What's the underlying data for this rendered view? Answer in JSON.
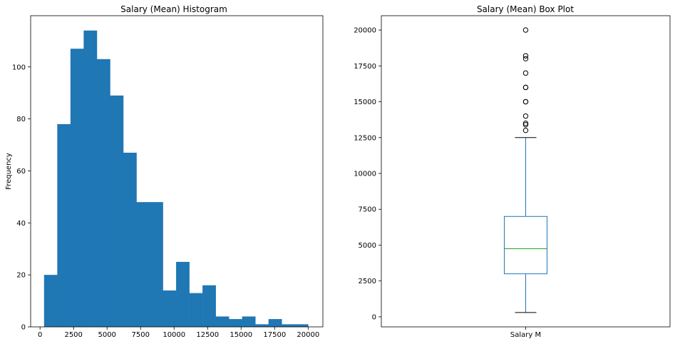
{
  "chart_data": [
    {
      "type": "bar",
      "subtype": "histogram",
      "title": "Salary (Mean) Histogram",
      "xlabel": "",
      "ylabel": "Frequency",
      "xlim": [
        -700,
        21100
      ],
      "ylim": [
        0,
        119.7
      ],
      "color": "#1f77b4",
      "xticks": [
        0,
        2500,
        5000,
        7500,
        10000,
        12500,
        15000,
        17500,
        20000
      ],
      "yticks": [
        0,
        20,
        40,
        60,
        80,
        100
      ],
      "bin_edges": [
        300,
        1285,
        2270,
        3255,
        4240,
        5225,
        6210,
        7195,
        8180,
        9165,
        10150,
        11135,
        12120,
        13105,
        14090,
        15075,
        16060,
        17045,
        18030,
        19015,
        20000
      ],
      "values": [
        20,
        78,
        107,
        114,
        103,
        89,
        67,
        48,
        48,
        14,
        25,
        13,
        16,
        4,
        3,
        4,
        1,
        3,
        1,
        1
      ],
      "grid": false
    },
    {
      "type": "box",
      "title": "Salary (Mean) Box Plot",
      "xlabel": "",
      "ylabel": "",
      "categories": [
        "Salary M"
      ],
      "ylim": [
        -700,
        21000
      ],
      "yticks": [
        0,
        2500,
        5000,
        7500,
        10000,
        12500,
        15000,
        17500,
        20000
      ],
      "box_color": "#1f77b4",
      "median_color": "#2ca02c",
      "stats": {
        "whisker_low": 300,
        "q1": 3000,
        "median": 4750,
        "q3": 7000,
        "whisker_high": 12500
      },
      "outliers": [
        13000,
        13400,
        13500,
        14000,
        15000,
        15000,
        16000,
        16000,
        17000,
        18000,
        18200,
        20000
      ],
      "grid": false
    }
  ]
}
